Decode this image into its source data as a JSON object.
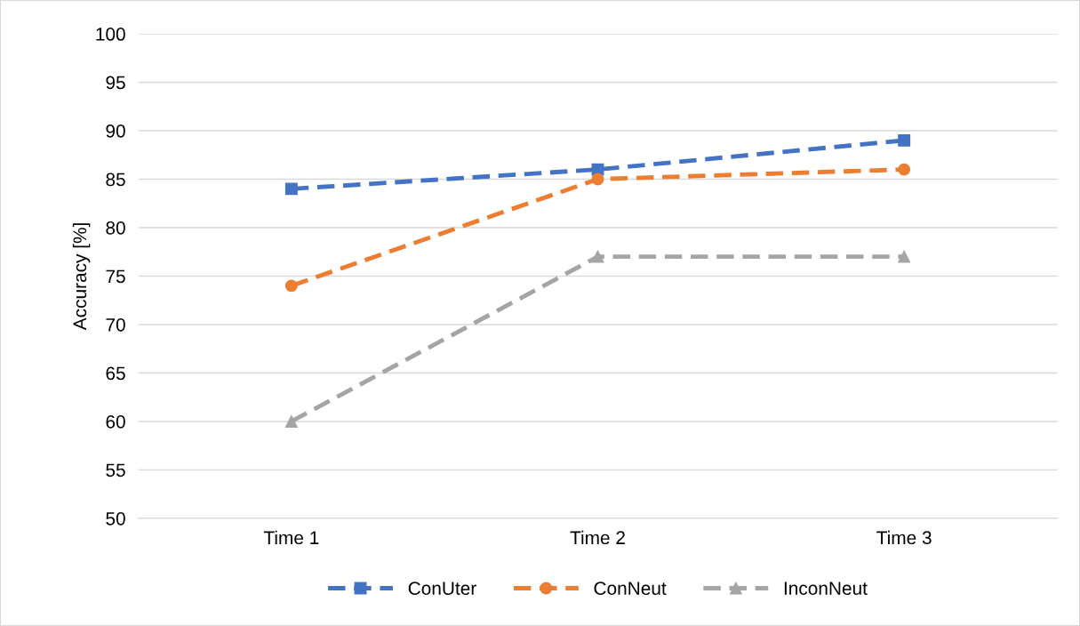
{
  "chart_data": {
    "type": "line",
    "ylabel": "Accuracy [%]",
    "categories": [
      "Time 1",
      "Time 2",
      "Time 3"
    ],
    "series": [
      {
        "name": "ConUter",
        "color": "#4472c4",
        "marker": "square",
        "values": [
          84,
          86,
          89
        ]
      },
      {
        "name": "ConNeut",
        "color": "#ed7d31",
        "marker": "circle",
        "values": [
          74,
          85,
          86
        ]
      },
      {
        "name": "InconNeut",
        "color": "#a5a5a5",
        "marker": "triangle",
        "values": [
          60,
          77,
          77
        ]
      }
    ],
    "ylim": [
      50,
      100
    ],
    "yticks": [
      50,
      55,
      60,
      65,
      70,
      75,
      80,
      85,
      90,
      95,
      100
    ],
    "grid": "y",
    "legend": "bottom",
    "line_style": "dashed"
  }
}
